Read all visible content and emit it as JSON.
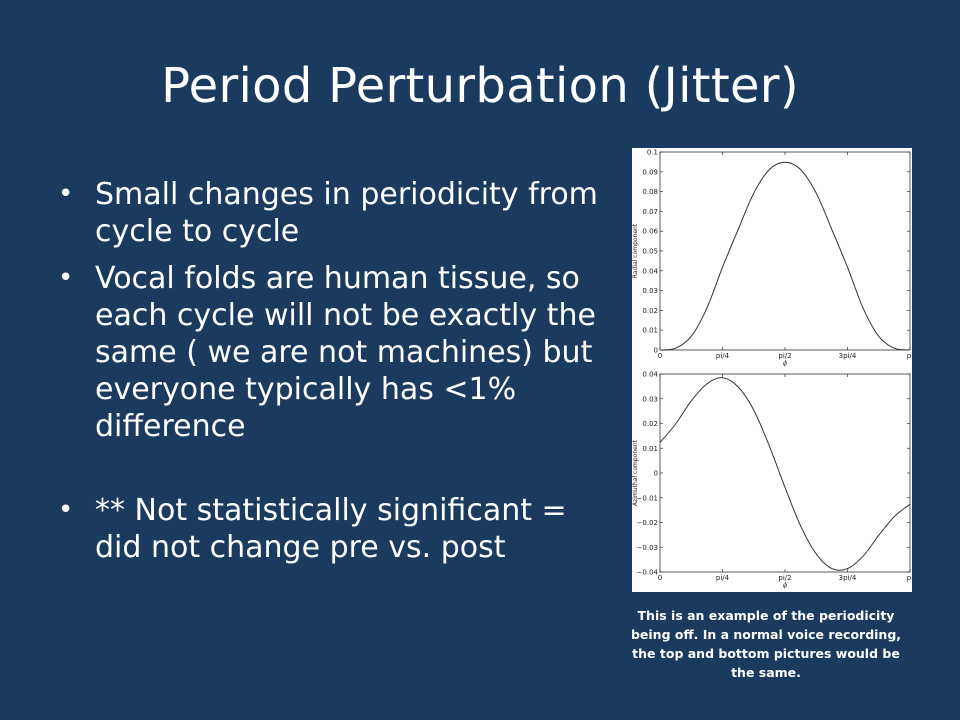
{
  "slide": {
    "title": "Period Perturbation (Jitter)",
    "bullets": [
      "Small changes in periodicity from cycle to cycle",
      "Vocal folds are human tissue, so each cycle will not be exactly the same ( we are not machines) but everyone typically has <1% difference",
      "** Not statistically significant = did not change pre vs. post"
    ],
    "caption": "This is an example of the periodicity being off.  In a normal voice recording, the top and bottom pictures would be the same."
  },
  "chart_data": [
    {
      "type": "line",
      "title": "",
      "xlabel": "ϕ",
      "ylabel": "Radial component",
      "xlim": [
        0,
        3.1416
      ],
      "ylim": [
        0,
        0.1
      ],
      "x_ticks": [
        {
          "value": 0,
          "label": "0"
        },
        {
          "value": 0.7854,
          "label": "pi/4"
        },
        {
          "value": 1.5708,
          "label": "pi/2"
        },
        {
          "value": 2.3562,
          "label": "3pi/4"
        },
        {
          "value": 3.1416,
          "label": "pi"
        }
      ],
      "y_ticks": [
        {
          "value": 0,
          "label": "0"
        },
        {
          "value": 0.01,
          "label": "0.01"
        },
        {
          "value": 0.02,
          "label": "0.02"
        },
        {
          "value": 0.03,
          "label": "0.03"
        },
        {
          "value": 0.04,
          "label": "0.04"
        },
        {
          "value": 0.05,
          "label": "0.05"
        },
        {
          "value": 0.06,
          "label": "0.06"
        },
        {
          "value": 0.07,
          "label": "0.07"
        },
        {
          "value": 0.08,
          "label": "0.08"
        },
        {
          "value": 0.09,
          "label": "0.09"
        },
        {
          "value": 0.1,
          "label": "0.1"
        }
      ],
      "series": [
        {
          "x": [
            0,
            0.1963,
            0.3927,
            0.589,
            0.7854,
            0.9817,
            1.1781,
            1.3744,
            1.5708,
            1.7671,
            1.9635,
            2.1598,
            2.3562,
            2.5525,
            2.7489,
            2.9452,
            3.1416
          ],
          "values": [
            0,
            0.0009,
            0.0069,
            0.0211,
            0.0418,
            0.0608,
            0.0792,
            0.0911,
            0.0948,
            0.0911,
            0.0792,
            0.0608,
            0.0418,
            0.0211,
            0.0069,
            0.0009,
            0
          ]
        }
      ]
    },
    {
      "type": "line",
      "title": "",
      "xlabel": "ϕ",
      "ylabel": "Azimuthal component",
      "xlim": [
        0,
        3.1416
      ],
      "ylim": [
        -0.04,
        0.04
      ],
      "x_ticks": [
        {
          "value": 0,
          "label": "0"
        },
        {
          "value": 0.7854,
          "label": "pi/4"
        },
        {
          "value": 1.5708,
          "label": "pi/2"
        },
        {
          "value": 2.3562,
          "label": "3pi/4"
        },
        {
          "value": 3.1416,
          "label": "pi"
        }
      ],
      "y_ticks": [
        {
          "value": -0.04,
          "label": "−0.04"
        },
        {
          "value": -0.03,
          "label": "−0.03"
        },
        {
          "value": -0.02,
          "label": "−0.02"
        },
        {
          "value": -0.01,
          "label": "−0.01"
        },
        {
          "value": 0,
          "label": "0"
        },
        {
          "value": 0.01,
          "label": "0.01"
        },
        {
          "value": 0.02,
          "label": "0.02"
        },
        {
          "value": 0.03,
          "label": "0.03"
        },
        {
          "value": 0.04,
          "label": "0.04"
        }
      ],
      "series": [
        {
          "x": [
            0,
            0.1963,
            0.3927,
            0.589,
            0.7854,
            0.9817,
            1.1781,
            1.3744,
            1.5708,
            1.7671,
            1.9635,
            2.1598,
            2.3562,
            2.5525,
            2.7489,
            2.9452,
            3.1416
          ],
          "values": [
            0.0123,
            0.0198,
            0.0291,
            0.036,
            0.0385,
            0.0348,
            0.0254,
            0.0109,
            -0.0058,
            -0.0214,
            -0.0327,
            -0.0386,
            -0.0386,
            -0.0336,
            -0.0252,
            -0.0176,
            -0.0126
          ]
        }
      ]
    }
  ]
}
